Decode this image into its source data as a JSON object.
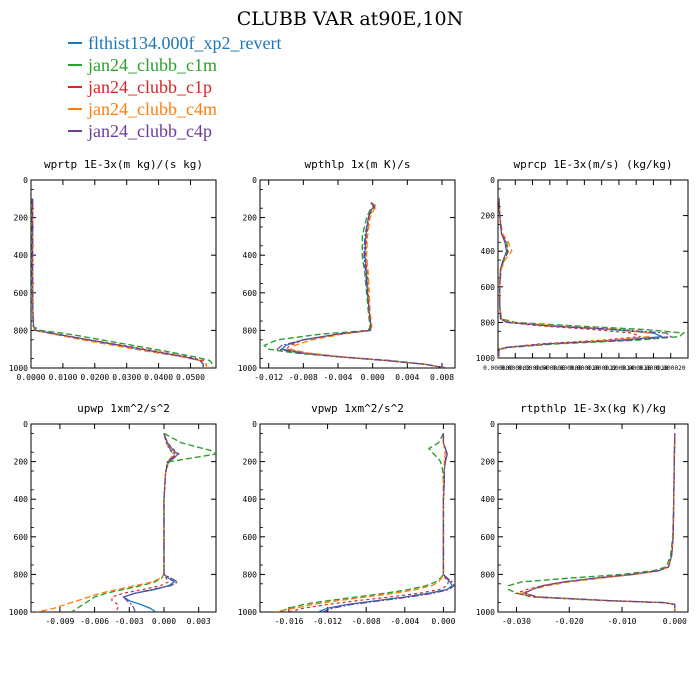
{
  "title": "CLUBB VAR at90E,10N",
  "legend": [
    {
      "name": "flthist134.000f_xp2_revert",
      "color": "#1f77b4"
    },
    {
      "name": "jan24_clubb_c1m",
      "color": "#2ca02c"
    },
    {
      "name": "jan24_clubb_c1p",
      "color": "#d62728"
    },
    {
      "name": "jan24_clubb_c4m",
      "color": "#ff7f0e"
    },
    {
      "name": "jan24_clubb_c4p",
      "color": "#6a3d9a"
    }
  ],
  "chart_data": [
    {
      "type": "line",
      "title": "wprtp  1E-3x(m kg)/(s kg)",
      "ylim": [
        0,
        1000
      ],
      "yticks": [
        "0",
        "200",
        "400",
        "600",
        "800",
        "1000"
      ],
      "yreverse": true,
      "xlim": [
        0,
        0.058
      ],
      "xticks": [
        0,
        0.01,
        0.02,
        0.03,
        0.04,
        0.05
      ],
      "xticklabels": [
        "0.0000",
        "0.0100",
        "0.0200",
        "0.0300",
        "0.0400",
        "0.0500"
      ],
      "y": [
        100,
        300,
        500,
        700,
        780,
        800,
        820,
        850,
        880,
        910,
        940,
        960,
        980,
        1000
      ],
      "series": [
        {
          "values": [
            0.0005,
            0.0005,
            0.0005,
            0.0006,
            0.0008,
            0.0015,
            0.008,
            0.018,
            0.028,
            0.038,
            0.048,
            0.053,
            0.054,
            0.054
          ]
        },
        {
          "values": [
            0.0004,
            0.0004,
            0.0004,
            0.0005,
            0.0007,
            0.003,
            0.012,
            0.022,
            0.032,
            0.042,
            0.051,
            0.056,
            0.057,
            0.057
          ]
        },
        {
          "values": [
            0.0005,
            0.0005,
            0.0005,
            0.0006,
            0.0008,
            0.0015,
            0.008,
            0.018,
            0.029,
            0.039,
            0.049,
            0.054,
            0.055,
            0.055
          ]
        },
        {
          "values": [
            0.0005,
            0.0005,
            0.0005,
            0.0006,
            0.0008,
            0.0012,
            0.007,
            0.016,
            0.026,
            0.036,
            0.047,
            0.053,
            0.055,
            0.055
          ]
        },
        {
          "values": [
            0.0005,
            0.0005,
            0.0005,
            0.0006,
            0.0008,
            0.0015,
            0.008,
            0.018,
            0.028,
            0.038,
            0.048,
            0.053,
            0.054,
            0.054
          ]
        }
      ]
    },
    {
      "type": "line",
      "title": "wpthlp  1x(m K)/s",
      "ylim": [
        0,
        1000
      ],
      "yticks": [
        "0",
        "200",
        "400",
        "600",
        "800",
        "1000"
      ],
      "yreverse": true,
      "xlim": [
        -0.013,
        0.0095
      ],
      "xticks": [
        -0.012,
        -0.008,
        -0.004,
        0,
        0.004,
        0.008
      ],
      "xticklabels": [
        "-0.012",
        "-0.008",
        "-0.004",
        "0.000",
        "0.004",
        "0.008"
      ],
      "y": [
        120,
        140,
        160,
        200,
        300,
        400,
        500,
        600,
        700,
        780,
        800,
        820,
        850,
        880,
        900,
        920,
        940,
        960,
        980,
        1000
      ],
      "series": [
        {
          "values": [
            -0.0002,
            0.0002,
            -0.0002,
            -0.0005,
            -0.0008,
            -0.0009,
            -0.0007,
            -0.0006,
            -0.0004,
            -0.0002,
            -0.0003,
            -0.004,
            -0.008,
            -0.01,
            -0.0105,
            -0.008,
            -0.004,
            0.0015,
            0.006,
            0.0085
          ]
        },
        {
          "values": [
            -0.0002,
            0.0001,
            -0.0003,
            -0.0007,
            -0.0012,
            -0.0012,
            -0.0009,
            -0.0007,
            -0.0005,
            -0.0003,
            -0.0005,
            -0.006,
            -0.011,
            -0.0125,
            -0.012,
            -0.009,
            -0.004,
            0.002,
            0.006,
            0.0085
          ]
        },
        {
          "values": [
            -0.0002,
            0.0003,
            -0.0001,
            -0.0004,
            -0.0007,
            -0.0008,
            -0.0006,
            -0.0005,
            -0.0004,
            -0.0002,
            -0.0002,
            -0.004,
            -0.008,
            -0.0095,
            -0.01,
            -0.008,
            -0.004,
            0.0015,
            0.006,
            0.0085
          ]
        },
        {
          "values": [
            -0.0002,
            0.0005,
            0.0001,
            -0.0003,
            -0.0006,
            -0.0007,
            -0.0005,
            -0.0004,
            -0.0003,
            -0.0001,
            -0.0002,
            -0.0035,
            -0.007,
            -0.009,
            -0.0095,
            -0.0075,
            -0.0035,
            0.0015,
            0.006,
            0.0085
          ]
        },
        {
          "values": [
            -0.0002,
            0.0002,
            -0.0002,
            -0.0005,
            -0.0009,
            -0.001,
            -0.0008,
            -0.0006,
            -0.0004,
            -0.0002,
            -0.0003,
            -0.004,
            -0.008,
            -0.0105,
            -0.011,
            -0.0085,
            -0.004,
            0.0015,
            0.006,
            0.0085
          ]
        }
      ]
    },
    {
      "type": "line",
      "title": "wprcp  1E-3x(m/s) (kg/kg)",
      "ylim": [
        0,
        1000
      ],
      "yticks": [
        "0",
        "200",
        "400",
        "600",
        "800",
        "1000"
      ],
      "yreverse": true,
      "xlim": [
        0,
        2.2e-05
      ],
      "xticks": [
        0,
        2e-06,
        4e-06,
        6e-06,
        8e-06,
        1e-05,
        1.2e-05,
        1.4e-05,
        1.6e-05,
        1.8e-05,
        2e-05
      ],
      "xticklabels": [
        "0.000000",
        "0.000002",
        "0.000004",
        "0.000006",
        "0.000008",
        "0.000010",
        "0.000012",
        "0.000014",
        "0.000016",
        "0.000018",
        "0.000020"
      ],
      "y": [
        100,
        200,
        300,
        350,
        400,
        450,
        500,
        600,
        700,
        780,
        800,
        820,
        840,
        860,
        880,
        900,
        920,
        940,
        950,
        960,
        1000
      ],
      "series": [
        {
          "values": [
            1e-07,
            2e-07,
            4e-07,
            8e-07,
            1e-06,
            6e-07,
            3e-07,
            2e-07,
            2e-07,
            3e-07,
            1e-06,
            6e-06,
            1.3e-05,
            1.8e-05,
            1.9e-05,
            1.4e-05,
            6e-06,
            1e-06,
            2e-07,
            1e-07,
            1e-07
          ]
        },
        {
          "values": [
            1e-07,
            2e-07,
            5e-07,
            1e-06,
            1.2e-06,
            7e-07,
            3e-07,
            2e-07,
            2e-07,
            4e-07,
            2e-06,
            9e-06,
            1.7e-05,
            2.15e-05,
            2.1e-05,
            1.6e-05,
            7e-06,
            1.5e-06,
            3e-07,
            1e-07,
            1e-07
          ]
        },
        {
          "values": [
            1e-07,
            2e-07,
            4e-07,
            8e-07,
            1e-06,
            6e-07,
            3e-07,
            2e-07,
            2e-07,
            3e-07,
            1e-06,
            5e-06,
            1.1e-05,
            1.55e-05,
            1.65e-05,
            1.2e-05,
            5e-06,
            1e-06,
            2e-07,
            1e-07,
            1e-07
          ]
        },
        {
          "values": [
            1e-07,
            2e-07,
            5e-07,
            1.2e-06,
            1.6e-06,
            8e-07,
            4e-07,
            2e-07,
            2e-07,
            4e-07,
            1.5e-06,
            7e-06,
            1.4e-05,
            1.75e-05,
            1.75e-05,
            1.3e-05,
            6e-06,
            1.2e-06,
            2e-07,
            1e-07,
            1e-07
          ]
        },
        {
          "values": [
            1e-07,
            2e-07,
            4e-07,
            9e-07,
            1.1e-06,
            6e-07,
            3e-07,
            2e-07,
            2e-07,
            3e-07,
            1.2e-06,
            6e-06,
            1.4e-05,
            1.95e-05,
            2e-05,
            1.5e-05,
            6e-06,
            1.2e-06,
            2e-07,
            1e-07,
            1e-07
          ]
        }
      ]
    },
    {
      "type": "line",
      "title": "upwp  1xm^2/s^2",
      "ylim": [
        0,
        1000
      ],
      "yticks": [
        "0",
        "200",
        "400",
        "600",
        "800",
        "1000"
      ],
      "yreverse": true,
      "xlim": [
        -0.0115,
        0.0045
      ],
      "xticks": [
        -0.009,
        -0.006,
        -0.003,
        0,
        0.003
      ],
      "xticklabels": [
        "-0.009",
        "-0.006",
        "-0.003",
        "0.000",
        "0.003"
      ],
      "y": [
        50,
        100,
        140,
        160,
        180,
        200,
        240,
        280,
        300,
        400,
        500,
        600,
        700,
        800,
        820,
        840,
        860,
        880,
        900,
        920,
        940,
        960,
        980,
        1000
      ],
      "series": [
        {
          "values": [
            0,
            0.0003,
            0.0008,
            0.0012,
            0.0009,
            0.0004,
            0.0002,
            0.0001,
            0.0001,
            0,
            0,
            0,
            0,
            0,
            0.0004,
            0.0009,
            0.0004,
            -0.0008,
            -0.0025,
            -0.0035,
            -0.003,
            -0.002,
            -0.0012,
            -0.0007
          ]
        },
        {
          "values": [
            0,
            0.0015,
            0.004,
            0.0045,
            0.0025,
            0.0005,
            0.0002,
            0.0001,
            0.0001,
            0,
            0,
            0,
            0,
            0,
            -0.0002,
            -0.0008,
            -0.002,
            -0.0035,
            -0.005,
            -0.006,
            -0.0065,
            -0.007,
            -0.0075,
            -0.008
          ]
        },
        {
          "values": [
            0,
            0.0003,
            0.0009,
            0.0013,
            0.0008,
            0.0003,
            0.0002,
            0.0001,
            0.0001,
            0,
            0,
            0,
            0,
            0,
            0.0002,
            0.0004,
            -0.0003,
            -0.0018,
            -0.0035,
            -0.0045,
            -0.0045,
            -0.004,
            -0.004,
            -0.0042
          ]
        },
        {
          "values": [
            0,
            0.0002,
            0.0005,
            0.0009,
            0.0006,
            0.0003,
            0.0002,
            0.0001,
            0.0001,
            0,
            0,
            0,
            0,
            0,
            -0.0003,
            -0.001,
            -0.0025,
            -0.004,
            -0.0055,
            -0.0065,
            -0.0075,
            -0.0085,
            -0.0095,
            -0.011
          ]
        },
        {
          "values": [
            0,
            0.0002,
            0.0006,
            0.001,
            0.0007,
            0.0003,
            0.0002,
            0.0001,
            0.0001,
            0,
            0,
            0,
            0,
            0,
            0.0006,
            0.0012,
            0.0006,
            -0.001,
            -0.0025,
            -0.0035,
            -0.0032,
            -0.0028,
            -0.0026,
            -0.0025
          ]
        }
      ]
    },
    {
      "type": "line",
      "title": "vpwp  1xm^2/s^2",
      "ylim": [
        0,
        1000
      ],
      "yticks": [
        "0",
        "200",
        "400",
        "600",
        "800",
        "1000"
      ],
      "yreverse": true,
      "xlim": [
        -0.019,
        0.0012
      ],
      "xticks": [
        -0.016,
        -0.012,
        -0.008,
        -0.004,
        0
      ],
      "xticklabels": [
        "-0.016",
        "-0.012",
        "-0.008",
        "-0.004",
        "0.000"
      ],
      "y": [
        50,
        100,
        130,
        160,
        180,
        200,
        240,
        300,
        400,
        500,
        600,
        700,
        800,
        820,
        840,
        860,
        880,
        900,
        920,
        940,
        960,
        980,
        1000
      ],
      "series": [
        {
          "values": [
            0,
            0,
            0.0002,
            0.0004,
            0.0003,
            0.0002,
            0.0001,
            0.0001,
            0,
            0,
            0,
            0,
            0,
            0.0003,
            0.0007,
            0.0009,
            0.0004,
            -0.0015,
            -0.004,
            -0.007,
            -0.01,
            -0.012,
            -0.013
          ]
        },
        {
          "values": [
            0,
            -0.0005,
            -0.0015,
            -0.001,
            -0.0006,
            -0.0003,
            -0.0001,
            0,
            0,
            0,
            0,
            0,
            0,
            -0.0003,
            -0.0008,
            -0.0018,
            -0.0035,
            -0.006,
            -0.009,
            -0.012,
            -0.0145,
            -0.016,
            -0.017
          ]
        },
        {
          "values": [
            0,
            0,
            0.0002,
            0.0003,
            0.0002,
            0.0002,
            0.0001,
            0.0001,
            0,
            0,
            0,
            0,
            0,
            0.0002,
            0.0005,
            0.0004,
            -0.0004,
            -0.0025,
            -0.0055,
            -0.009,
            -0.012,
            -0.0145,
            -0.016
          ]
        },
        {
          "values": [
            0,
            0,
            0.0001,
            0.0002,
            0.0001,
            0.0001,
            0.0001,
            0,
            0,
            0,
            0,
            0,
            0,
            -0.0002,
            -0.0005,
            -0.0012,
            -0.0028,
            -0.005,
            -0.008,
            -0.011,
            -0.0135,
            -0.0155,
            -0.0175
          ]
        },
        {
          "values": [
            0,
            0,
            0.0002,
            0.0004,
            0.0003,
            0.0002,
            0.0001,
            0.0001,
            0,
            0,
            0,
            0,
            0,
            0.0004,
            0.0009,
            0.0011,
            0.0006,
            -0.001,
            -0.0035,
            -0.0065,
            -0.0095,
            -0.0115,
            -0.0125
          ]
        }
      ]
    },
    {
      "type": "line",
      "title": "rtpthlp  1E-3x(kg K)/kg",
      "ylim": [
        0,
        1000
      ],
      "yticks": [
        "0",
        "200",
        "400",
        "600",
        "800",
        "1000"
      ],
      "yreverse": true,
      "xlim": [
        -0.0335,
        0.0025
      ],
      "xticks": [
        -0.03,
        -0.02,
        -0.01,
        0
      ],
      "xticklabels": [
        "-0.030",
        "-0.020",
        "-0.010",
        "0.000"
      ],
      "y": [
        50,
        200,
        400,
        600,
        700,
        760,
        780,
        800,
        820,
        840,
        860,
        880,
        900,
        920,
        940,
        950,
        960,
        980,
        1000
      ],
      "series": [
        {
          "values": [
            0,
            -0.0001,
            -0.0002,
            -0.0003,
            -0.0006,
            -0.0012,
            -0.003,
            -0.008,
            -0.015,
            -0.021,
            -0.025,
            -0.027,
            -0.0285,
            -0.026,
            -0.012,
            -0.002,
            0,
            0,
            0
          ]
        },
        {
          "values": [
            0,
            -0.0001,
            -0.0002,
            -0.0004,
            -0.0008,
            -0.0016,
            -0.004,
            -0.01,
            -0.02,
            -0.029,
            -0.0315,
            -0.0315,
            -0.03,
            -0.027,
            -0.013,
            -0.002,
            0,
            0,
            0
          ]
        },
        {
          "values": [
            0,
            -0.0001,
            -0.0002,
            -0.0003,
            -0.0006,
            -0.0012,
            -0.003,
            -0.008,
            -0.015,
            -0.021,
            -0.025,
            -0.028,
            -0.03,
            -0.027,
            -0.012,
            -0.002,
            0,
            0,
            0
          ]
        },
        {
          "values": [
            0,
            -0.0001,
            -0.0002,
            -0.0003,
            -0.0006,
            -0.0011,
            -0.0028,
            -0.0075,
            -0.014,
            -0.02,
            -0.024,
            -0.027,
            -0.029,
            -0.026,
            -0.012,
            -0.002,
            0,
            0,
            0
          ]
        },
        {
          "values": [
            0,
            -0.0001,
            -0.0002,
            -0.0003,
            -0.0006,
            -0.0012,
            -0.003,
            -0.008,
            -0.015,
            -0.021,
            -0.025,
            -0.027,
            -0.0285,
            -0.026,
            -0.012,
            -0.002,
            0,
            0,
            0
          ]
        }
      ]
    }
  ]
}
